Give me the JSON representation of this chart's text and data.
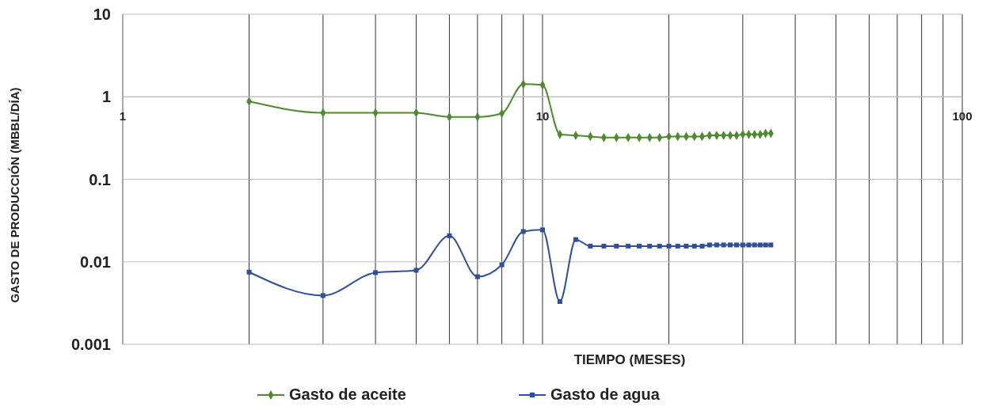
{
  "chart_data": {
    "type": "line",
    "xlabel": "TIEMPO (MESES)",
    "ylabel": "GASTO DE PRODUCCIÓN (MBBL/DÍA)",
    "log": "xy",
    "grid": true,
    "legend": "bottom",
    "line_style": "solid",
    "xlim": [
      1,
      100
    ],
    "ylim": [
      0.001,
      10
    ],
    "xticks": [
      1,
      {
        "value": 2,
        "label": null
      },
      {
        "value": 3,
        "label": null
      },
      {
        "value": 4,
        "label": null
      },
      {
        "value": 5,
        "label": null
      },
      {
        "value": 6,
        "label": null
      },
      {
        "value": 7,
        "label": null
      },
      {
        "value": 8,
        "label": null
      },
      {
        "value": 9,
        "label": null
      },
      10,
      {
        "value": 20,
        "label": null
      },
      {
        "value": 30,
        "label": null
      },
      {
        "value": 40,
        "label": null
      },
      {
        "value": 50,
        "label": null
      },
      {
        "value": 60,
        "label": null
      },
      {
        "value": 70,
        "label": null
      },
      {
        "value": 80,
        "label": null
      },
      {
        "value": 90,
        "label": null
      },
      100
    ],
    "yticks": [
      {
        "value": 0.001,
        "label": "0.001"
      },
      {
        "value": 0.01,
        "label": "0.01"
      },
      {
        "value": 0.1,
        "label": "0.1"
      },
      1,
      10
    ],
    "x": [
      2,
      3,
      4,
      5,
      6,
      7,
      8,
      9,
      10,
      11,
      12,
      13,
      14,
      15,
      16,
      17,
      18,
      19,
      20,
      21,
      22,
      23,
      24,
      25,
      26,
      27,
      28,
      29,
      30,
      31,
      32,
      33,
      34,
      35
    ],
    "series": [
      {
        "name": "Gasto de aceite",
        "color": "#4e8a2e",
        "marker": "diamond",
        "values": [
          0.88,
          0.64,
          0.64,
          0.64,
          0.57,
          0.57,
          0.63,
          1.42,
          1.39,
          0.35,
          0.34,
          0.33,
          0.32,
          0.32,
          0.32,
          0.32,
          0.32,
          0.32,
          0.33,
          0.33,
          0.33,
          0.33,
          0.33,
          0.34,
          0.34,
          0.34,
          0.34,
          0.34,
          0.35,
          0.35,
          0.35,
          0.35,
          0.36,
          0.36
        ]
      },
      {
        "name": "Gasto de agua",
        "color": "#2e4f9a",
        "marker": "square",
        "values": [
          0.0075,
          0.0039,
          0.0074,
          0.0079,
          0.0207,
          0.0066,
          0.0092,
          0.0233,
          0.0244,
          0.0033,
          0.0186,
          0.0155,
          0.0155,
          0.0155,
          0.0155,
          0.0155,
          0.0155,
          0.0155,
          0.0155,
          0.0155,
          0.0155,
          0.0155,
          0.0155,
          0.016,
          0.016,
          0.016,
          0.016,
          0.016,
          0.016,
          0.016,
          0.016,
          0.016,
          0.016,
          0.016
        ]
      }
    ]
  }
}
